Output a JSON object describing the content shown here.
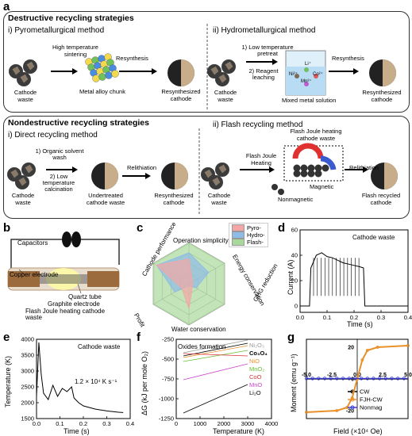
{
  "panel_labels": [
    "a",
    "b",
    "c",
    "d",
    "e",
    "f",
    "g"
  ],
  "destructive": {
    "title": "Destructive recycling strategies",
    "pyro_title": "i) Pyrometallurgical method",
    "hydro_title": "ii) Hydrometallurgical method",
    "cathode_waste": "Cathode waste",
    "high_temp": "High temperature sintering",
    "resynthesis": "Resynthesis",
    "metal_alloy": "Metal alloy chunk",
    "resynthesized": "Resynthesized cathode",
    "low_temp_pretreat": "1) Low temperature pretreat",
    "reagent_leaching": "2) Reagent leaching",
    "mixed_metal": "Mixed metal solution",
    "ions": [
      "Li⁺",
      "Ni²⁺",
      "Co²⁺",
      "Mn²⁺"
    ]
  },
  "nondestructive": {
    "title": "Nondestructive recycling strategies",
    "direct_title": "i) Direct recycling method",
    "flash_title": "ii) Flash recycling method",
    "organic_wash": "1) Organic solvent wash",
    "low_temp_calc": "2) Low temperature calcination",
    "undertreated": "Undertreated cathode waste",
    "relithiation": "Relithiation",
    "resynthesized": "Resynthesized cathode",
    "cathode_waste": "Cathode waste",
    "flash_joule": "Flash Joule Heating",
    "fjh_waste": "Flash Joule heating cathode waste",
    "magnetic": "Magnetic",
    "nonmagnetic": "Nonmagnetic",
    "flash_recycled": "Flash recycled cathode"
  },
  "panel_b": {
    "capacitors": "Capacitors",
    "copper": "Copper electrode",
    "quartz": "Quartz tube",
    "graphite": "Graphite electrode",
    "fjh_waste": "Flash Joule heating cathode waste"
  },
  "panel_c": {
    "axes": [
      "Operation simplicity",
      "Energy conservation",
      "GHG reduction",
      "Water conservation",
      "Profit",
      "Cathode performance"
    ],
    "legend": [
      {
        "name": "Pyro-",
        "color": "#f4a6a6"
      },
      {
        "name": "Hydro-",
        "color": "#8fbce6"
      },
      {
        "name": "Flash-",
        "color": "#a8d99a"
      }
    ]
  },
  "colors": {
    "fjh": "#e8902a",
    "cw": "#000000",
    "nonmag": "#3a3ad0"
  },
  "chart_data": [
    {
      "type": "line",
      "panel": "d",
      "annotation": "Cathode waste",
      "xlabel": "Time (s)",
      "ylabel": "Current (A)",
      "xlim": [
        0,
        0.4
      ],
      "ylim": [
        -5,
        60
      ],
      "xticks": [
        "0.0",
        "0.1",
        "0.2",
        "0.3",
        "0.4"
      ],
      "yticks": [
        "0",
        "20",
        "40",
        "60"
      ],
      "x": [
        0,
        0.035,
        0.04,
        0.06,
        0.08,
        0.1,
        0.12,
        0.14,
        0.16,
        0.18,
        0.2,
        0.22,
        0.235,
        0.24,
        0.26,
        0.3,
        0.35,
        0.4
      ],
      "y": [
        0,
        0,
        30,
        40,
        42,
        39,
        38,
        36,
        34,
        33,
        32,
        31,
        30,
        0,
        0,
        0,
        0,
        0
      ]
    },
    {
      "type": "line",
      "panel": "e",
      "annotation": "Cathode waste",
      "rate_label": "1.2 × 10⁴ K s⁻¹",
      "xlabel": "Time (s)",
      "ylabel": "Temperature (K)",
      "xlim": [
        0,
        0.4
      ],
      "ylim": [
        1500,
        4000
      ],
      "xticks": [
        "0.0",
        "0.1",
        "0.2",
        "0.3",
        "0.4"
      ],
      "yticks": [
        "1500",
        "2000",
        "2500",
        "3000",
        "3500",
        "4000"
      ],
      "x": [
        0,
        0.01,
        0.02,
        0.03,
        0.05,
        0.07,
        0.09,
        0.11,
        0.13,
        0.15,
        0.16,
        0.18,
        0.2,
        0.25,
        0.3,
        0.35,
        0.37
      ],
      "y": [
        2200,
        3900,
        2900,
        2300,
        2100,
        2550,
        2200,
        2450,
        2350,
        2500,
        2150,
        2000,
        1900,
        1800,
        1740,
        1700,
        1690
      ]
    },
    {
      "type": "line",
      "panel": "f",
      "annotation": "Oxides formation",
      "xlabel": "Temperature (K)",
      "ylabel": "ΔG (kJ per mole O₂)",
      "xlim": [
        0,
        4000
      ],
      "ylim": [
        -1250,
        -250
      ],
      "xticks": [
        "0",
        "1000",
        "2000",
        "3000",
        "4000"
      ],
      "yticks": [
        "-250",
        "-500",
        "-750",
        "-1000",
        "-1250"
      ],
      "series": [
        {
          "name": "Ni₂O₃",
          "color": "#999999",
          "x": [
            300,
            3000
          ],
          "y": [
            -420,
            -260
          ]
        },
        {
          "name": "Co₃O₄",
          "color": "#000000",
          "x": [
            300,
            3000
          ],
          "y": [
            -460,
            -300
          ]
        },
        {
          "name": "NiO",
          "color": "#e8902a",
          "x": [
            300,
            3000
          ],
          "y": [
            -480,
            -330
          ]
        },
        {
          "name": "MnO₂",
          "color": "#66bb33",
          "x": [
            300,
            3000
          ],
          "y": [
            -530,
            -390
          ]
        },
        {
          "name": "CoO",
          "color": "#dd3333",
          "x": [
            300,
            3000
          ],
          "y": [
            -430,
            -460
          ]
        },
        {
          "name": "MnO",
          "color": "#cc44cc",
          "x": [
            300,
            3000
          ],
          "y": [
            -760,
            -560
          ]
        },
        {
          "name": "Li₂O",
          "color": "#000000",
          "x": [
            300,
            3000
          ],
          "y": [
            -1180,
            -820
          ]
        }
      ]
    },
    {
      "type": "line",
      "panel": "g",
      "xlabel": "Field (×10⁴ Oe)",
      "ylabel": "Moment (emu g⁻¹)",
      "xlim": [
        -5,
        5
      ],
      "ylim": [
        -25,
        25
      ],
      "xticks": [
        "-5.0",
        "-2.5",
        "0.0",
        "2.5",
        "5.0"
      ],
      "yticks": [
        "20",
        "0",
        "-20"
      ],
      "series": [
        {
          "name": "CW",
          "color": "#000000",
          "x": [
            -5,
            5
          ],
          "y": [
            0,
            0
          ]
        },
        {
          "name": "FJH-CW",
          "color": "#e8902a",
          "x": [
            -5,
            -2,
            -1,
            -0.5,
            0,
            0.5,
            1,
            2,
            5
          ],
          "y": [
            -21,
            -20,
            -18,
            -12,
            0,
            12,
            18,
            20,
            21
          ]
        },
        {
          "name": "Nonmag",
          "color": "#3a3ad0",
          "x": [
            -5,
            5
          ],
          "y": [
            0.3,
            0.3
          ]
        }
      ]
    }
  ]
}
